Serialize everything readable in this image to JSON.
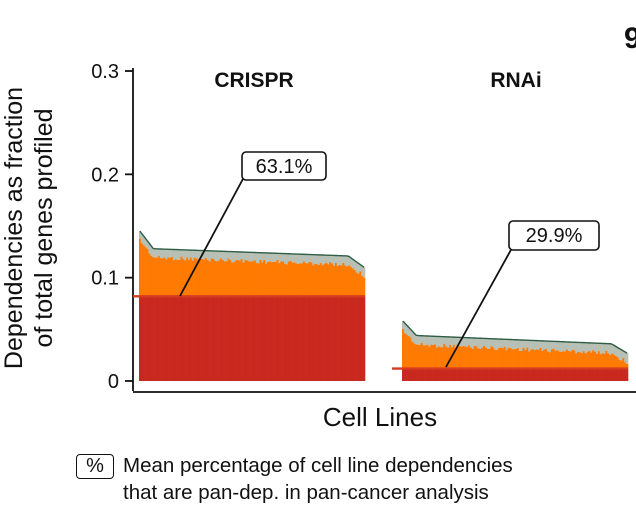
{
  "chart_data": {
    "type": "bar",
    "ylabel_line1": "Dependencies as fraction",
    "ylabel_line2": "of total genes profiled",
    "xlabel": "Cell Lines",
    "ylim": [
      0,
      0.3
    ],
    "yticks": [
      "0",
      "0.1",
      "0.2",
      "0.3"
    ],
    "partial_title": "9",
    "panels": [
      {
        "title": "CRISPR",
        "n": 120,
        "total_start": 0.145,
        "total_high": 0.128,
        "total_low": 0.121,
        "total_end": 0.11,
        "pan_dep_fraction": 0.082,
        "label": "63.1%"
      },
      {
        "title": "RNAi",
        "n": 120,
        "total_start": 0.058,
        "total_high": 0.044,
        "total_low": 0.036,
        "total_end": 0.027,
        "pan_dep_fraction": 0.012,
        "label": "29.9%"
      }
    ],
    "colors": {
      "total": "#ff7a00",
      "pan_dep": "#c8281e",
      "tip": "#b8c0b6",
      "outline": "#2f5d46",
      "mean_line": "#d63c1f"
    }
  },
  "legend": {
    "symbol": "%",
    "line1": "Mean percentage of cell line dependencies",
    "line2": "that are pan-dep. in pan-cancer analysis"
  }
}
